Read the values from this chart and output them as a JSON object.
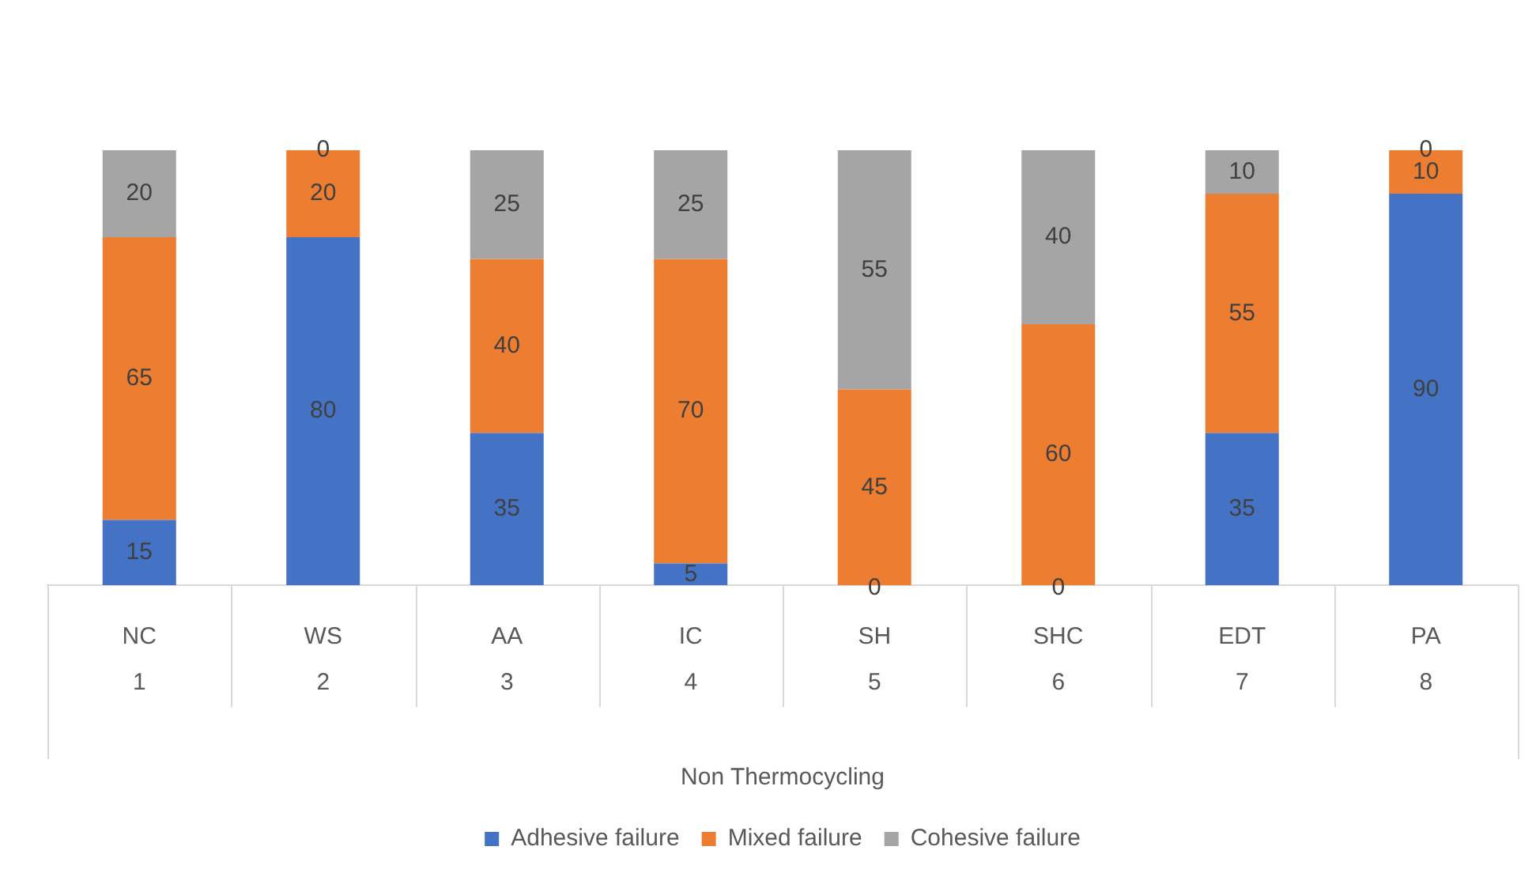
{
  "chart_data": {
    "type": "bar",
    "stacked": true,
    "xlabel": "Non Thermocycling",
    "categories": [
      "NC",
      "WS",
      "AA",
      "IC",
      "SH",
      "SHC",
      "EDT",
      "PA"
    ],
    "series": [
      {
        "name": "Adhesive failure",
        "color": "#4472c4",
        "values": [
          15,
          80,
          35,
          5,
          0,
          0,
          35,
          90
        ],
        "value_labels": [
          "15",
          "80",
          "35",
          "5",
          null,
          null,
          "35",
          "90"
        ]
      },
      {
        "name": "Mixed failure",
        "color": "#ed7d31",
        "values": [
          65,
          20,
          40,
          70,
          45,
          60,
          55,
          10
        ],
        "value_labels": [
          "65",
          "20",
          "40",
          "70",
          "45",
          "60",
          "55",
          "10"
        ]
      },
      {
        "name": "Cohesive failure",
        "color": "#a5a5a5",
        "values": [
          20,
          0,
          25,
          25,
          55,
          40,
          10,
          0
        ],
        "value_labels": [
          "20",
          "0",
          "25",
          "25",
          "55",
          "40",
          "10",
          "0"
        ]
      }
    ],
    "ylim": [
      0,
      100
    ],
    "tick_labels": "x",
    "grid": false,
    "legend": "bottom",
    "annotations": [
      "1",
      "2",
      "3",
      "4",
      "5",
      "6",
      "7",
      "8",
      {
        "text": "0",
        "x": "SH",
        "y": 0
      },
      {
        "text": "0",
        "x": "SHC",
        "y": 0
      }
    ]
  }
}
